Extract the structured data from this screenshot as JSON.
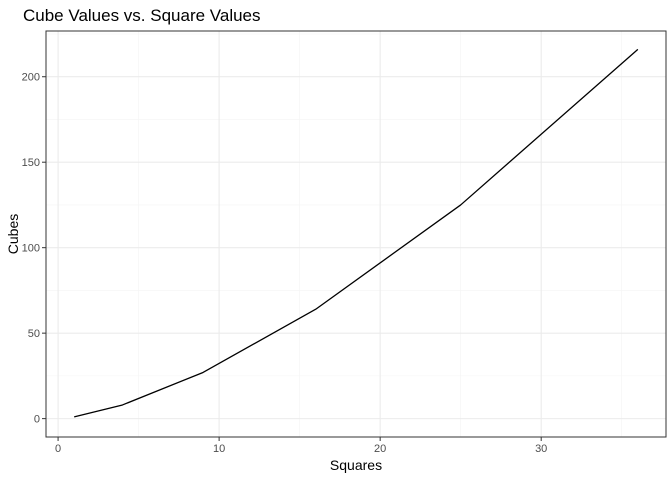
{
  "chart_data": {
    "type": "line",
    "title": "Cube Values vs. Square Values",
    "xlabel": "Squares",
    "ylabel": "Cubes",
    "x": [
      1,
      4,
      9,
      16,
      25,
      36
    ],
    "y": [
      1,
      8,
      27,
      64,
      125,
      216
    ],
    "xlim": [
      -0.75,
      37.75
    ],
    "ylim": [
      -10.75,
      226.75
    ],
    "x_ticks": [
      0,
      10,
      20,
      30
    ],
    "x_minor_ticks": [
      5,
      15,
      25,
      35
    ],
    "y_ticks": [
      0,
      50,
      100,
      150,
      200
    ],
    "y_minor_ticks": [
      25,
      75,
      125,
      175,
      225
    ],
    "x_tick_labels": [
      "0",
      "10",
      "20",
      "30"
    ],
    "y_tick_labels": [
      "0",
      "50",
      "100",
      "150",
      "200"
    ],
    "grid": true,
    "line_color": "#000000"
  }
}
